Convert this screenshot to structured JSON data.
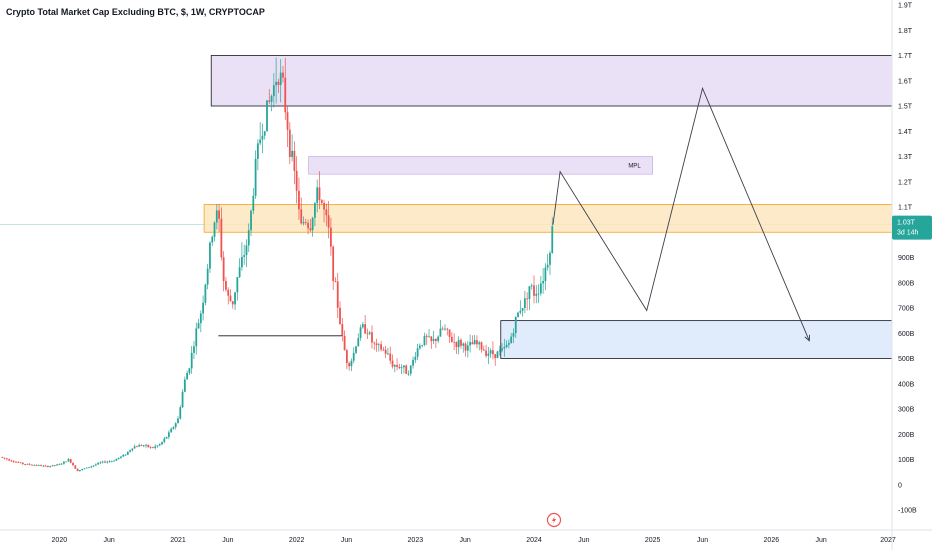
{
  "header": {
    "title": "Crypto Total Market Cap Excluding BTC, $, 1W, CRYPTOCAP"
  },
  "price_badge": {
    "price": "1.03T",
    "countdown": "3d 14h",
    "color": "#26a69a"
  },
  "colors": {
    "up": "#26a69a",
    "down": "#ef5350",
    "resistance_zone": "#e6dcf5",
    "support_zone": "#dbe8fb",
    "key_zone": "#fde6bf"
  },
  "icons": {
    "logo": "lightning-circle-icon"
  },
  "chart_data": {
    "type": "candlestick",
    "y_tick_labels": [
      "1.9T",
      "1.8T",
      "1.7T",
      "1.6T",
      "1.5T",
      "1.4T",
      "1.3T",
      "1.2T",
      "1.1T",
      "1.0T",
      "900B",
      "800B",
      "700B",
      "600B",
      "500B",
      "400B",
      "300B",
      "200B",
      "100B",
      "0",
      "-100B"
    ],
    "y_tick_values": [
      1900,
      1800,
      1700,
      1600,
      1500,
      1400,
      1300,
      1200,
      1100,
      1000,
      900,
      800,
      700,
      600,
      500,
      400,
      300,
      200,
      100,
      0,
      -100
    ],
    "x_tick_labels": [
      "2020",
      "Jun",
      "2021",
      "Jun",
      "2022",
      "Jun",
      "2023",
      "Jun",
      "2024",
      "Jun",
      "2025",
      "Jun",
      "2026",
      "Jun",
      "2027"
    ],
    "x_tick_values": [
      2020.0,
      2020.42,
      2021.0,
      2021.42,
      2022.0,
      2022.42,
      2023.0,
      2023.42,
      2024.0,
      2024.42,
      2025.0,
      2025.42,
      2026.0,
      2026.42,
      2027.0
    ],
    "ylim": [
      -100,
      1900
    ],
    "xlim": [
      2019.5,
      2027.0
    ],
    "y_unit": "USD billions",
    "last_price": 1030,
    "close_path": [
      [
        2019.5,
        110
      ],
      [
        2019.6,
        95
      ],
      [
        2019.7,
        82
      ],
      [
        2019.8,
        78
      ],
      [
        2019.9,
        72
      ],
      [
        2020.0,
        80
      ],
      [
        2020.08,
        100
      ],
      [
        2020.15,
        55
      ],
      [
        2020.25,
        70
      ],
      [
        2020.35,
        88
      ],
      [
        2020.45,
        95
      ],
      [
        2020.55,
        118
      ],
      [
        2020.62,
        150
      ],
      [
        2020.7,
        158
      ],
      [
        2020.78,
        145
      ],
      [
        2020.85,
        160
      ],
      [
        2020.92,
        200
      ],
      [
        2021.0,
        260
      ],
      [
        2021.05,
        400
      ],
      [
        2021.1,
        480
      ],
      [
        2021.15,
        600
      ],
      [
        2021.2,
        700
      ],
      [
        2021.26,
        900
      ],
      [
        2021.3,
        1040
      ],
      [
        2021.34,
        1080
      ],
      [
        2021.38,
        820
      ],
      [
        2021.42,
        740
      ],
      [
        2021.46,
        720
      ],
      [
        2021.5,
        820
      ],
      [
        2021.55,
        900
      ],
      [
        2021.6,
        1000
      ],
      [
        2021.65,
        1250
      ],
      [
        2021.7,
        1400
      ],
      [
        2021.75,
        1480
      ],
      [
        2021.8,
        1560
      ],
      [
        2021.84,
        1650
      ],
      [
        2021.88,
        1580
      ],
      [
        2021.92,
        1440
      ],
      [
        2021.96,
        1280
      ],
      [
        2022.0,
        1180
      ],
      [
        2022.03,
        1010
      ],
      [
        2022.07,
        1060
      ],
      [
        2022.11,
        1020
      ],
      [
        2022.15,
        1110
      ],
      [
        2022.19,
        1160
      ],
      [
        2022.23,
        1080
      ],
      [
        2022.27,
        1000
      ],
      [
        2022.31,
        830
      ],
      [
        2022.35,
        700
      ],
      [
        2022.39,
        560
      ],
      [
        2022.43,
        480
      ],
      [
        2022.47,
        500
      ],
      [
        2022.51,
        580
      ],
      [
        2022.55,
        620
      ],
      [
        2022.59,
        620
      ],
      [
        2022.63,
        570
      ],
      [
        2022.67,
        540
      ],
      [
        2022.71,
        540
      ],
      [
        2022.76,
        520
      ],
      [
        2022.8,
        480
      ],
      [
        2022.84,
        470
      ],
      [
        2022.88,
        470
      ],
      [
        2022.92,
        450
      ],
      [
        2022.96,
        460
      ],
      [
        2023.0,
        520
      ],
      [
        2023.04,
        560
      ],
      [
        2023.09,
        580
      ],
      [
        2023.14,
        560
      ],
      [
        2023.19,
        590
      ],
      [
        2023.24,
        620
      ],
      [
        2023.29,
        580
      ],
      [
        2023.34,
        560
      ],
      [
        2023.39,
        560
      ],
      [
        2023.44,
        540
      ],
      [
        2023.49,
        560
      ],
      [
        2023.54,
        550
      ],
      [
        2023.59,
        530
      ],
      [
        2023.64,
        520
      ],
      [
        2023.69,
        520
      ],
      [
        2023.74,
        530
      ],
      [
        2023.79,
        560
      ],
      [
        2023.84,
        640
      ],
      [
        2023.88,
        700
      ],
      [
        2023.92,
        720
      ],
      [
        2023.96,
        790
      ],
      [
        2024.0,
        760
      ],
      [
        2024.04,
        780
      ],
      [
        2024.08,
        830
      ],
      [
        2024.12,
        900
      ],
      [
        2024.16,
        1030
      ]
    ],
    "zones": [
      {
        "name": "resistance",
        "range": [
          1500,
          1700
        ],
        "from": 2021.28
      },
      {
        "name": "mpl",
        "label": "MPL",
        "range": [
          1230,
          1300
        ],
        "from": 2022.1,
        "to": 2025.0
      },
      {
        "name": "key",
        "range": [
          1000,
          1110
        ],
        "from": 2021.22
      },
      {
        "name": "support",
        "range": [
          500,
          650
        ],
        "from": 2023.72
      }
    ],
    "horizontal_line": {
      "value": 590,
      "from": 2021.34,
      "to": 2022.38
    },
    "projection": [
      [
        2024.16,
        1030
      ],
      [
        2024.22,
        1240
      ],
      [
        2024.95,
        690
      ],
      [
        2025.42,
        1570
      ],
      [
        2026.32,
        570
      ]
    ]
  }
}
